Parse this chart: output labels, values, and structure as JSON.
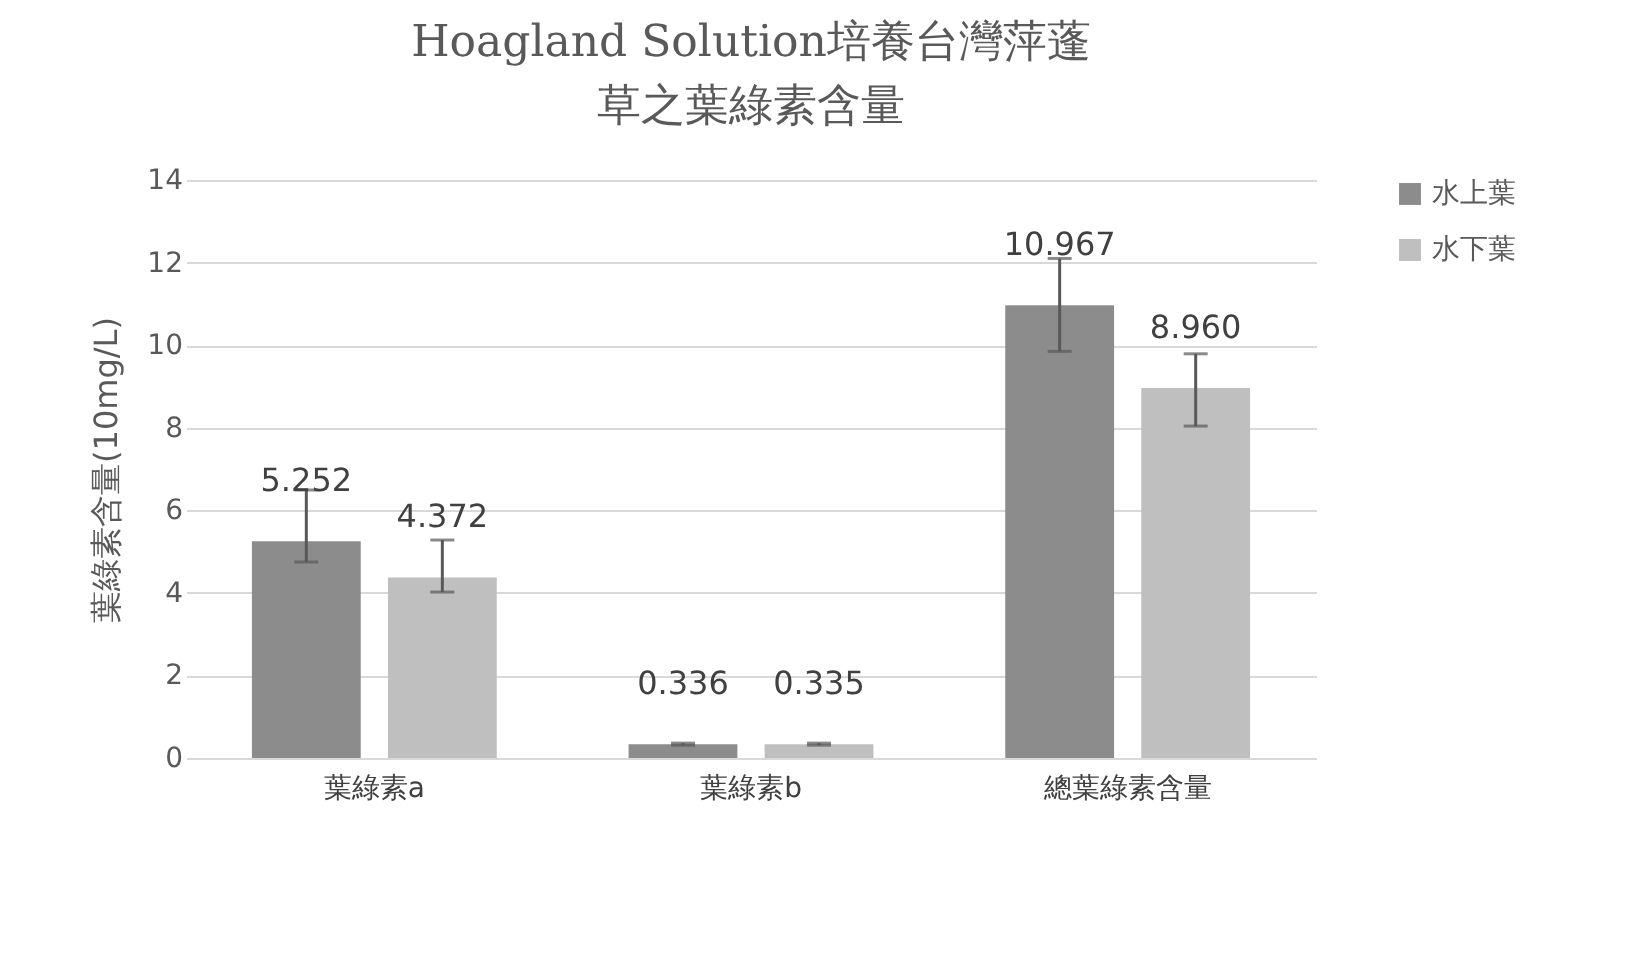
{
  "chart_data": {
    "type": "bar",
    "title": "Hoagland Solution培養台灣萍蓬草之葉綠素含量",
    "ylabel": "葉綠素含量(10mg/L)",
    "categories": [
      "葉綠素a",
      "葉綠素b",
      "總葉綠素含量"
    ],
    "series": [
      {
        "name": "水上葉",
        "color": "#8c8c8c",
        "values": [
          5.252,
          0.336,
          10.967
        ],
        "value_labels": [
          "5.252",
          "0.336",
          "10.967"
        ],
        "errors": [
          [
            4.75,
            6.49
          ],
          [
            0.31,
            0.36
          ],
          [
            9.85,
            12.1
          ]
        ]
      },
      {
        "name": "水下葉",
        "color": "#bfbfbf",
        "values": [
          4.372,
          0.335,
          8.96
        ],
        "value_labels": [
          "4.372",
          "0.335",
          "8.960"
        ],
        "errors": [
          [
            4.02,
            5.28
          ],
          [
            0.31,
            0.36
          ],
          [
            8.04,
            9.79
          ]
        ]
      }
    ],
    "ylim": [
      0,
      14
    ],
    "yticks": [
      0,
      2,
      4,
      6,
      8,
      10,
      12,
      14
    ],
    "grid": "y",
    "legend": "right"
  }
}
